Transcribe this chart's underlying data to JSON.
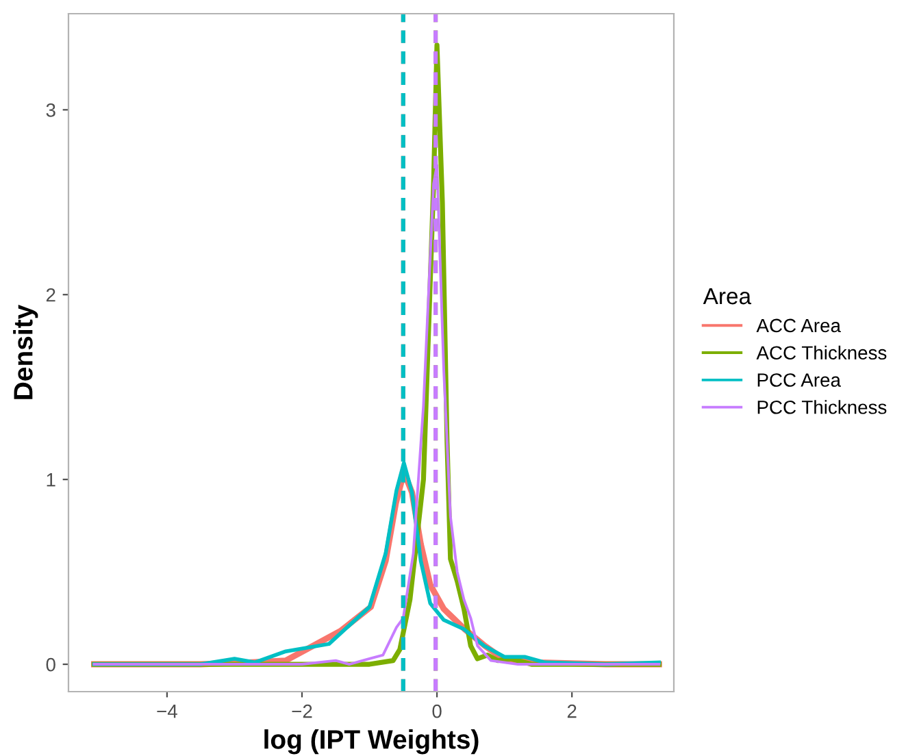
{
  "chart_data": {
    "type": "line",
    "xlabel": "log (IPT Weights)",
    "ylabel": "Density",
    "legend_title": "Area",
    "legend": "right",
    "grid": false,
    "xlim": [
      -5.46,
      3.51
    ],
    "ylim": [
      -0.148,
      3.52
    ],
    "xticks": [
      {
        "value": -4,
        "label": "−4"
      },
      {
        "value": -2,
        "label": "−2"
      },
      0,
      2
    ],
    "yticks": [
      0,
      1,
      2,
      3
    ],
    "series": [
      {
        "name": "ACC Area",
        "color": "#f8766d",
        "x": [
          -5.08,
          -3.5,
          -2.8,
          -2.24,
          -1.43,
          -0.98,
          -0.76,
          -0.61,
          -0.49,
          -0.37,
          -0.24,
          -0.1,
          0.1,
          0.41,
          0.71,
          1.02,
          1.5,
          2.5,
          3.29
        ],
        "values": [
          0,
          0,
          0.01,
          0.02,
          0.18,
          0.31,
          0.56,
          0.87,
          1.04,
          0.93,
          0.65,
          0.43,
          0.3,
          0.19,
          0.1,
          0.02,
          0.01,
          0,
          0
        ]
      },
      {
        "name": "ACC Thickness",
        "color": "#7cae00",
        "x": [
          -5.08,
          -1.0,
          -0.65,
          -0.55,
          -0.4,
          -0.2,
          -0.05,
          0.0,
          0.08,
          0.15,
          0.2,
          0.3,
          0.4,
          0.5,
          0.6,
          0.75,
          0.9,
          1.1,
          1.4,
          2.5,
          3.29
        ],
        "values": [
          0,
          0,
          0.02,
          0.08,
          0.35,
          1.0,
          2.6,
          3.35,
          2.5,
          1.2,
          0.57,
          0.45,
          0.3,
          0.1,
          0.03,
          0.05,
          0.02,
          0.03,
          0,
          0,
          0
        ]
      },
      {
        "name": "PCC Area",
        "color": "#00bfc4",
        "x": [
          -5.08,
          -3.5,
          -3.0,
          -2.7,
          -2.24,
          -1.6,
          -1.3,
          -1.0,
          -0.76,
          -0.6,
          -0.49,
          -0.37,
          -0.24,
          -0.1,
          0.1,
          0.4,
          0.7,
          1.0,
          1.3,
          1.6,
          2.5,
          3.29
        ],
        "values": [
          0,
          0,
          0.03,
          0.01,
          0.07,
          0.11,
          0.21,
          0.31,
          0.6,
          0.94,
          1.09,
          0.93,
          0.56,
          0.33,
          0.24,
          0.19,
          0.1,
          0.04,
          0.04,
          0.01,
          0,
          0.01
        ]
      },
      {
        "name": "PCC Thickness",
        "color": "#c77cff",
        "x": [
          -5.08,
          -2.0,
          -1.5,
          -1.3,
          -1.0,
          -0.8,
          -0.6,
          -0.5,
          -0.35,
          -0.2,
          -0.05,
          0.0,
          0.1,
          0.2,
          0.3,
          0.4,
          0.5,
          0.6,
          0.8,
          1.2,
          2.5,
          3.29
        ],
        "values": [
          0,
          0,
          0.02,
          0,
          0.03,
          0.05,
          0.2,
          0.25,
          0.6,
          1.4,
          2.6,
          2.7,
          1.6,
          0.8,
          0.5,
          0.35,
          0.25,
          0.1,
          0.02,
          0,
          0,
          0
        ]
      }
    ],
    "ref_lines": [
      {
        "axis": "x",
        "value": -0.5,
        "color": "#f8766d",
        "line_style": "dashed"
      },
      {
        "axis": "x",
        "value": -0.02,
        "color": "#7cae00",
        "line_style": "dashed"
      },
      {
        "axis": "x",
        "value": -0.5,
        "color": "#00bfc4",
        "line_style": "dashed"
      },
      {
        "axis": "x",
        "value": -0.02,
        "color": "#c77cff",
        "line_style": "dashed"
      }
    ]
  }
}
